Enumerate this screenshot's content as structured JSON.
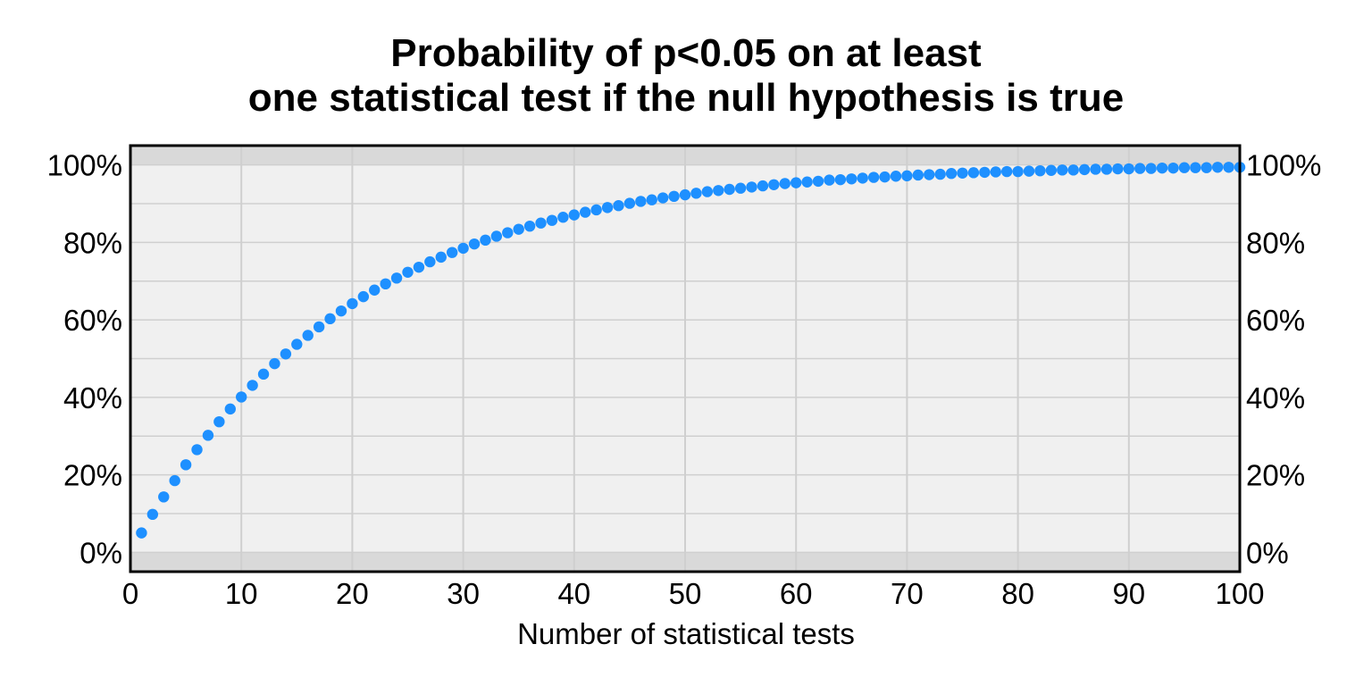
{
  "chart_data": {
    "type": "scatter",
    "title": "Probability of p<0.05 on at least",
    "subtitle": "one statistical test if the null hypothesis is true",
    "xlabel": "Number of statistical tests",
    "ylabel": "",
    "xlim": [
      0,
      100
    ],
    "ylim": [
      -5,
      105
    ],
    "x_ticks": [
      0,
      10,
      20,
      30,
      40,
      50,
      60,
      70,
      80,
      90,
      100
    ],
    "x_tick_labels": [
      "0",
      "10",
      "20",
      "30",
      "40",
      "50",
      "60",
      "70",
      "80",
      "90",
      "100"
    ],
    "y_ticks": [
      0,
      20,
      40,
      60,
      80,
      100
    ],
    "y_tick_labels": [
      "0%",
      "20%",
      "40%",
      "60%",
      "80%",
      "100%"
    ],
    "y_axis_right": true,
    "grid": true,
    "point_color": "#1e90ff",
    "series": [
      {
        "x": [
          1,
          2,
          3,
          4,
          5,
          6,
          7,
          8,
          9,
          10,
          11,
          12,
          13,
          14,
          15,
          16,
          17,
          18,
          19,
          20,
          21,
          22,
          23,
          24,
          25,
          26,
          27,
          28,
          29,
          30,
          31,
          32,
          33,
          34,
          35,
          36,
          37,
          38,
          39,
          40,
          41,
          42,
          43,
          44,
          45,
          46,
          47,
          48,
          49,
          50,
          51,
          52,
          53,
          54,
          55,
          56,
          57,
          58,
          59,
          60,
          61,
          62,
          63,
          64,
          65,
          66,
          67,
          68,
          69,
          70,
          71,
          72,
          73,
          74,
          75,
          76,
          77,
          78,
          79,
          80,
          81,
          82,
          83,
          84,
          85,
          86,
          87,
          88,
          89,
          90,
          91,
          92,
          93,
          94,
          95,
          96,
          97,
          98,
          99,
          100
        ],
        "y": [
          5.0,
          9.8,
          14.3,
          18.5,
          22.6,
          26.5,
          30.2,
          33.7,
          37.0,
          40.1,
          43.1,
          46.0,
          48.7,
          51.2,
          53.7,
          56.0,
          58.2,
          60.3,
          62.3,
          64.2,
          66.0,
          67.7,
          69.3,
          70.8,
          72.3,
          73.6,
          75.0,
          76.2,
          77.4,
          78.5,
          79.6,
          80.6,
          81.6,
          82.5,
          83.4,
          84.2,
          85.0,
          85.7,
          86.5,
          87.1,
          87.8,
          88.4,
          89.0,
          89.5,
          90.1,
          90.6,
          91.0,
          91.5,
          91.9,
          92.3,
          92.7,
          93.1,
          93.4,
          93.7,
          94.0,
          94.3,
          94.6,
          94.9,
          95.2,
          95.4,
          95.6,
          95.8,
          96.1,
          96.2,
          96.4,
          96.6,
          96.8,
          96.9,
          97.1,
          97.2,
          97.4,
          97.5,
          97.6,
          97.8,
          97.9,
          98.0,
          98.1,
          98.2,
          98.3,
          98.3,
          98.4,
          98.5,
          98.6,
          98.7,
          98.7,
          98.8,
          98.9,
          98.9,
          99.0,
          99.0,
          99.1,
          99.1,
          99.2,
          99.2,
          99.3,
          99.3,
          99.3,
          99.4,
          99.4,
          99.4
        ]
      }
    ]
  }
}
